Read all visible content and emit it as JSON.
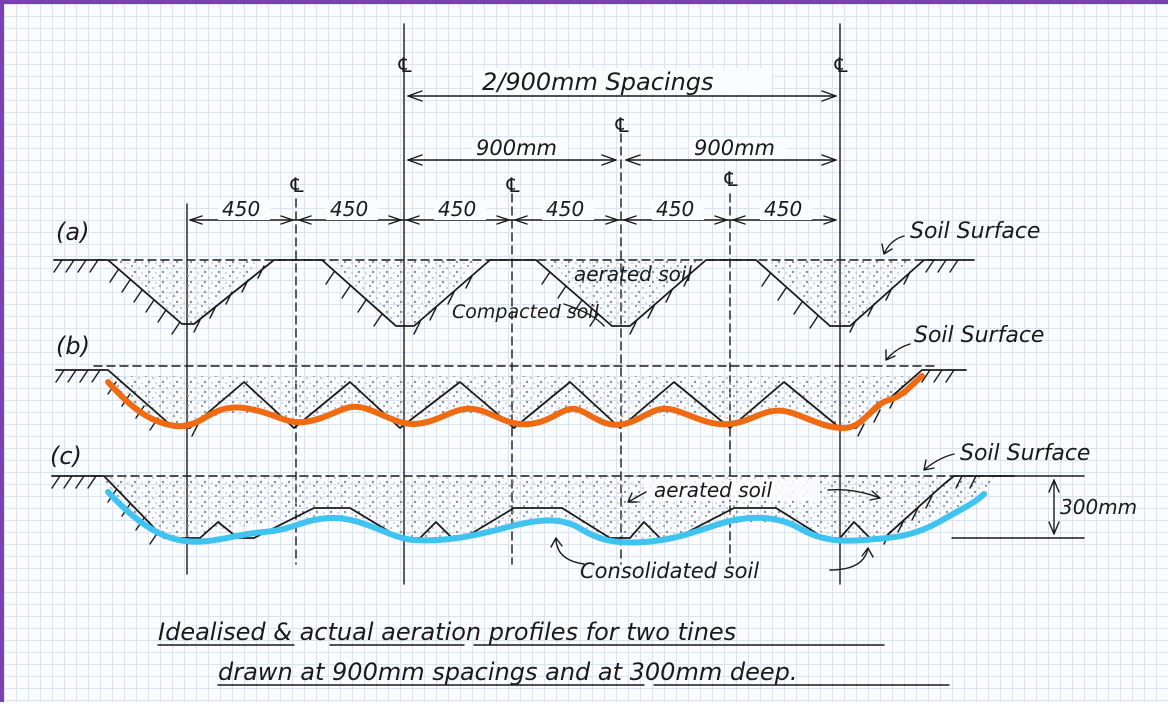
{
  "labels": {
    "spacing_total": "2/900mm Spacings",
    "spacing_900_left": "900mm",
    "spacing_900_right": "900mm",
    "centerline": "℄",
    "half_spacing": "450",
    "profile_a": "(a)",
    "profile_b": "(b)",
    "profile_c": "(c)",
    "soil_surface": "Soil Surface",
    "aerated_soil_a": "aerated soil",
    "compacted_soil": "Compacted soil",
    "aerated_soil_c": "aerated soil",
    "consolidated_soil": "Consolidated soil",
    "depth": "300mm"
  },
  "caption": {
    "line1": "Idealised & actual aeration profiles for two tines",
    "line2": "drawn at 900mm spacings and at 300mm deep."
  },
  "colors": {
    "frame": "#7d3fb4",
    "grid": "#dbe3ef",
    "ink": "#1a1a1a",
    "profile_b_line": "#f06a12",
    "profile_c_line": "#3fc3f0",
    "soil_stipple": "#9a9a9a"
  }
}
